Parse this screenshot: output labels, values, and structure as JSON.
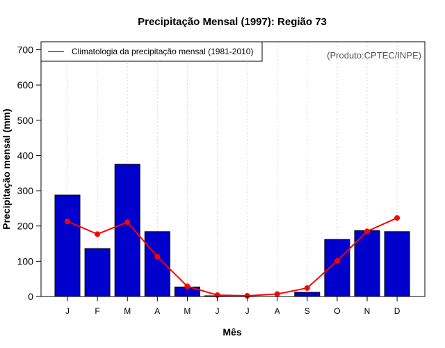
{
  "chart_data": {
    "type": "bar",
    "title": "Precipitação Mensal (1997): Região 73",
    "xlabel": "Mês",
    "ylabel": "Precipitação mensal (mm)",
    "ylim": [
      0,
      700
    ],
    "yticks": [
      0,
      100,
      200,
      300,
      400,
      500,
      600,
      700
    ],
    "categories": [
      "J",
      "F",
      "M",
      "A",
      "M",
      "J",
      "J",
      "A",
      "S",
      "O",
      "N",
      "D"
    ],
    "grid": "vertical dotted",
    "series": [
      {
        "name": "Precipitação mensal (1997)",
        "type": "bar",
        "color": "#0000CC",
        "values": [
          288,
          136,
          375,
          184,
          27,
          2,
          0,
          0,
          12,
          162,
          187,
          184
        ]
      },
      {
        "name": "Climatologia da precipitação mensal (1981-2010)",
        "type": "line",
        "color": "#FF0000",
        "values": [
          213,
          177,
          211,
          113,
          29,
          4,
          2,
          7,
          24,
          101,
          185,
          223
        ]
      }
    ],
    "legend": {
      "placement": "top-left",
      "entries": [
        "Climatologia da precipitação mensal (1981-2010)"
      ]
    },
    "annotations": [
      "(Produto:CPTEC/INPE)"
    ]
  }
}
